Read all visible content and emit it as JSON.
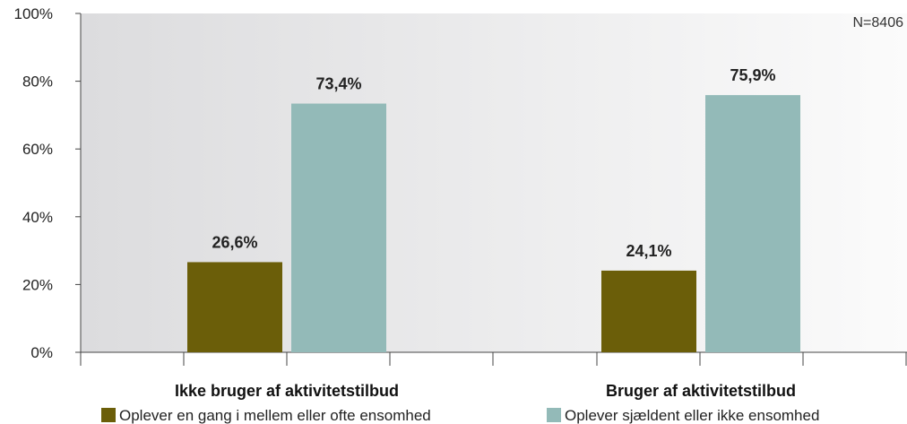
{
  "chart_data": {
    "type": "bar",
    "categories": [
      "Ikke bruger af aktivitetstilbud",
      "Bruger af aktivitetstilbud"
    ],
    "series": [
      {
        "name": "Oplever en gang i mellem eller ofte ensomhed",
        "values": [
          26.6,
          24.1
        ],
        "labels": [
          "26,6%",
          "24,1%"
        ],
        "color": "#6b5e09"
      },
      {
        "name": "Oplever sjældent eller ikke ensomhed",
        "values": [
          73.4,
          75.9
        ],
        "labels": [
          "73,4%",
          "75,9%"
        ],
        "color": "#93bab8"
      }
    ],
    "ylim": [
      0,
      100
    ],
    "yticks": [
      0,
      20,
      40,
      60,
      80,
      100
    ],
    "ytick_labels": [
      "0%",
      "20%",
      "40%",
      "60%",
      "80%",
      "100%"
    ],
    "annotation": "N=8406",
    "legend_position": "bottom",
    "grid": false
  }
}
